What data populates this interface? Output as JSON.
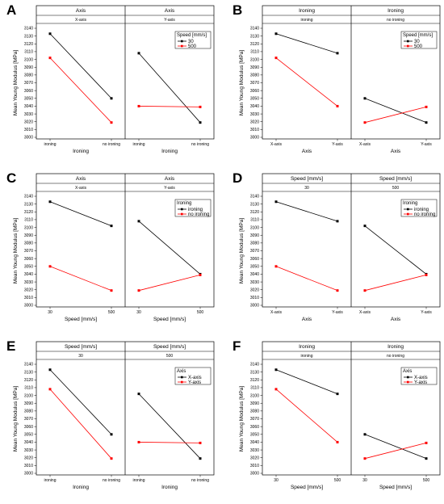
{
  "chart_data": [
    {
      "type": "line",
      "panel_label": "A",
      "ylabel": "Mean Young Modulus [MPa]",
      "ylim": [
        3000,
        3140
      ],
      "yticks": [
        "3000",
        "3010",
        "3020",
        "3030",
        "3040",
        "3050",
        "3060",
        "3070",
        "3080",
        "3090",
        "3100",
        "3110",
        "3120",
        "3130",
        "3140"
      ],
      "legend": {
        "title": "Speed [mm/s]",
        "entries": [
          "30",
          "500"
        ],
        "placement": "top-right of second facet"
      },
      "facets": [
        {
          "header_title": "Axis",
          "header_strip": "X-axis",
          "xlabel": "Ironing",
          "categories": [
            "ironing",
            "no ironing"
          ],
          "series": [
            {
              "name": "30",
              "color": "#000000",
              "values": [
                3133,
                3050
              ]
            },
            {
              "name": "500",
              "color": "#ff0000",
              "values": [
                3102,
                3019
              ]
            }
          ]
        },
        {
          "header_title": "Axis",
          "header_strip": "Y-axis",
          "xlabel": "Ironing",
          "categories": [
            "ironing",
            "no ironing"
          ],
          "series": [
            {
              "name": "30",
              "color": "#000000",
              "values": [
                3108,
                3019
              ]
            },
            {
              "name": "500",
              "color": "#ff0000",
              "values": [
                3040,
                3039
              ]
            }
          ]
        }
      ]
    },
    {
      "type": "line",
      "panel_label": "B",
      "ylabel": "Mean Young Modulus [MPa]",
      "ylim": [
        3000,
        3140
      ],
      "yticks": [
        "3000",
        "3010",
        "3020",
        "3030",
        "3040",
        "3050",
        "3060",
        "3070",
        "3080",
        "3090",
        "3100",
        "3110",
        "3120",
        "3130",
        "3140"
      ],
      "legend": {
        "title": "Speed [mm/s]",
        "entries": [
          "30",
          "500"
        ],
        "placement": "top-right of second facet"
      },
      "facets": [
        {
          "header_title": "Ironing",
          "header_strip": "ironing",
          "xlabel": "Axis",
          "categories": [
            "X-axis",
            "Y-axis"
          ],
          "series": [
            {
              "name": "30",
              "color": "#000000",
              "values": [
                3133,
                3108
              ]
            },
            {
              "name": "500",
              "color": "#ff0000",
              "values": [
                3102,
                3040
              ]
            }
          ]
        },
        {
          "header_title": "Ironing",
          "header_strip": "no ironing",
          "xlabel": "Axis",
          "categories": [
            "X-axis",
            "Y-axis"
          ],
          "series": [
            {
              "name": "30",
              "color": "#000000",
              "values": [
                3050,
                3019
              ]
            },
            {
              "name": "500",
              "color": "#ff0000",
              "values": [
                3019,
                3039
              ]
            }
          ]
        }
      ]
    },
    {
      "type": "line",
      "panel_label": "C",
      "ylabel": "Mean Young Modulus [MPa]",
      "ylim": [
        3000,
        3140
      ],
      "yticks": [
        "3000",
        "3010",
        "3020",
        "3030",
        "3040",
        "3050",
        "3060",
        "3070",
        "3080",
        "3090",
        "3100",
        "3110",
        "3120",
        "3130",
        "3140"
      ],
      "legend": {
        "title": "Ironing",
        "entries": [
          "ironing",
          "no ironing"
        ],
        "placement": "top-right of second facet"
      },
      "facets": [
        {
          "header_title": "Axis",
          "header_strip": "X-axis",
          "xlabel": "Speed [mm/s]",
          "categories": [
            "30",
            "500"
          ],
          "series": [
            {
              "name": "ironing",
              "color": "#000000",
              "values": [
                3133,
                3102
              ]
            },
            {
              "name": "no ironing",
              "color": "#ff0000",
              "values": [
                3050,
                3019
              ]
            }
          ]
        },
        {
          "header_title": "Axis",
          "header_strip": "Y-axis",
          "xlabel": "Speed [mm/s]",
          "categories": [
            "30",
            "500"
          ],
          "series": [
            {
              "name": "ironing",
              "color": "#000000",
              "values": [
                3108,
                3040
              ]
            },
            {
              "name": "no ironing",
              "color": "#ff0000",
              "values": [
                3019,
                3039
              ]
            }
          ]
        }
      ]
    },
    {
      "type": "line",
      "panel_label": "D",
      "ylabel": "Mean Young Modulus [MPa]",
      "ylim": [
        3000,
        3140
      ],
      "yticks": [
        "3000",
        "3010",
        "3020",
        "3030",
        "3040",
        "3050",
        "3060",
        "3070",
        "3080",
        "3090",
        "3100",
        "3110",
        "3120",
        "3130",
        "3140"
      ],
      "legend": {
        "title": "Ironing",
        "entries": [
          "ironing",
          "no ironing"
        ],
        "placement": "top-right of second facet"
      },
      "facets": [
        {
          "header_title": "Speed [mm/s]",
          "header_strip": "30",
          "xlabel": "Axis",
          "categories": [
            "X-axis",
            "Y-axis"
          ],
          "series": [
            {
              "name": "ironing",
              "color": "#000000",
              "values": [
                3133,
                3108
              ]
            },
            {
              "name": "no ironing",
              "color": "#ff0000",
              "values": [
                3050,
                3019
              ]
            }
          ]
        },
        {
          "header_title": "Speed [mm/s]",
          "header_strip": "500",
          "xlabel": "Axis",
          "categories": [
            "X-axis",
            "Y-axis"
          ],
          "series": [
            {
              "name": "ironing",
              "color": "#000000",
              "values": [
                3102,
                3040
              ]
            },
            {
              "name": "no ironing",
              "color": "#ff0000",
              "values": [
                3019,
                3039
              ]
            }
          ]
        }
      ]
    },
    {
      "type": "line",
      "panel_label": "E",
      "ylabel": "Mean Young Modulus [MPa]",
      "ylim": [
        3000,
        3140
      ],
      "yticks": [
        "3000",
        "3010",
        "3020",
        "3030",
        "3040",
        "3050",
        "3060",
        "3070",
        "3080",
        "3090",
        "3100",
        "3110",
        "3120",
        "3130",
        "3140"
      ],
      "legend": {
        "title": "Axis",
        "entries": [
          "X-axis",
          "Y-axis"
        ],
        "placement": "top-right of second facet"
      },
      "facets": [
        {
          "header_title": "Speed [mm/s]",
          "header_strip": "30",
          "xlabel": "Ironing",
          "categories": [
            "ironing",
            "no ironing"
          ],
          "series": [
            {
              "name": "X-axis",
              "color": "#000000",
              "values": [
                3133,
                3050
              ]
            },
            {
              "name": "Y-axis",
              "color": "#ff0000",
              "values": [
                3108,
                3019
              ]
            }
          ]
        },
        {
          "header_title": "Speed [mm/s]",
          "header_strip": "500",
          "xlabel": "Ironing",
          "categories": [
            "ironing",
            "no ironing"
          ],
          "series": [
            {
              "name": "X-axis",
              "color": "#000000",
              "values": [
                3102,
                3019
              ]
            },
            {
              "name": "Y-axis",
              "color": "#ff0000",
              "values": [
                3040,
                3039
              ]
            }
          ]
        }
      ]
    },
    {
      "type": "line",
      "panel_label": "F",
      "ylabel": "Mean Young Modulus [MPa]",
      "ylim": [
        3000,
        3140
      ],
      "yticks": [
        "3000",
        "3010",
        "3020",
        "3030",
        "3040",
        "3050",
        "3060",
        "3070",
        "3080",
        "3090",
        "3100",
        "3110",
        "3120",
        "3130",
        "3140"
      ],
      "legend": {
        "title": "Axis",
        "entries": [
          "X-axis",
          "Y-axis"
        ],
        "placement": "top-right of second facet"
      },
      "facets": [
        {
          "header_title": "Ironing",
          "header_strip": "ironing",
          "xlabel": "Speed [mm/s]",
          "categories": [
            "30",
            "500"
          ],
          "series": [
            {
              "name": "X-axis",
              "color": "#000000",
              "values": [
                3133,
                3102
              ]
            },
            {
              "name": "Y-axis",
              "color": "#ff0000",
              "values": [
                3108,
                3040
              ]
            }
          ]
        },
        {
          "header_title": "Ironing",
          "header_strip": "no ironing",
          "xlabel": "Speed [mm/s]",
          "categories": [
            "30",
            "500"
          ],
          "series": [
            {
              "name": "X-axis",
              "color": "#000000",
              "values": [
                3050,
                3019
              ]
            },
            {
              "name": "Y-axis",
              "color": "#ff0000",
              "values": [
                3019,
                3039
              ]
            }
          ]
        }
      ]
    }
  ]
}
